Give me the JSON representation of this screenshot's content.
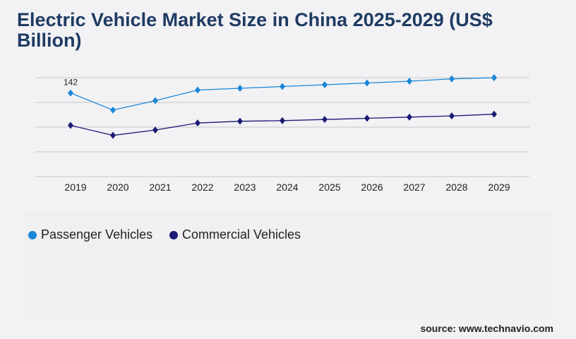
{
  "title": "Electric Vehicle Market Size in China 2025-2029 (US$ Billion)",
  "source": "source: www.technavio.com",
  "chart_data": {
    "type": "line",
    "title": "Electric Vehicle Market Size in China 2025-2029 (US$ Billion)",
    "categories": [
      "2019",
      "2020",
      "2021",
      "2022",
      "2023",
      "2024",
      "2025",
      "2026",
      "2027",
      "2028",
      "2029"
    ],
    "ylim": [
      0,
      168
    ],
    "grid": true,
    "legend": "bottom-left",
    "series": [
      {
        "name": "Passenger Vehicles",
        "color": "#1a86d8",
        "values": [
          142,
          113,
          129,
          147,
          150,
          153,
          156,
          159,
          162,
          166,
          168
        ]
      },
      {
        "name": "Commercial Vehicles",
        "color": "#1b1a75",
        "values": [
          87,
          70,
          79,
          91,
          94,
          95,
          97,
          99,
          101,
          103,
          106
        ]
      }
    ],
    "annotations": [
      {
        "label": "142",
        "series": 0,
        "index": 0
      }
    ]
  }
}
